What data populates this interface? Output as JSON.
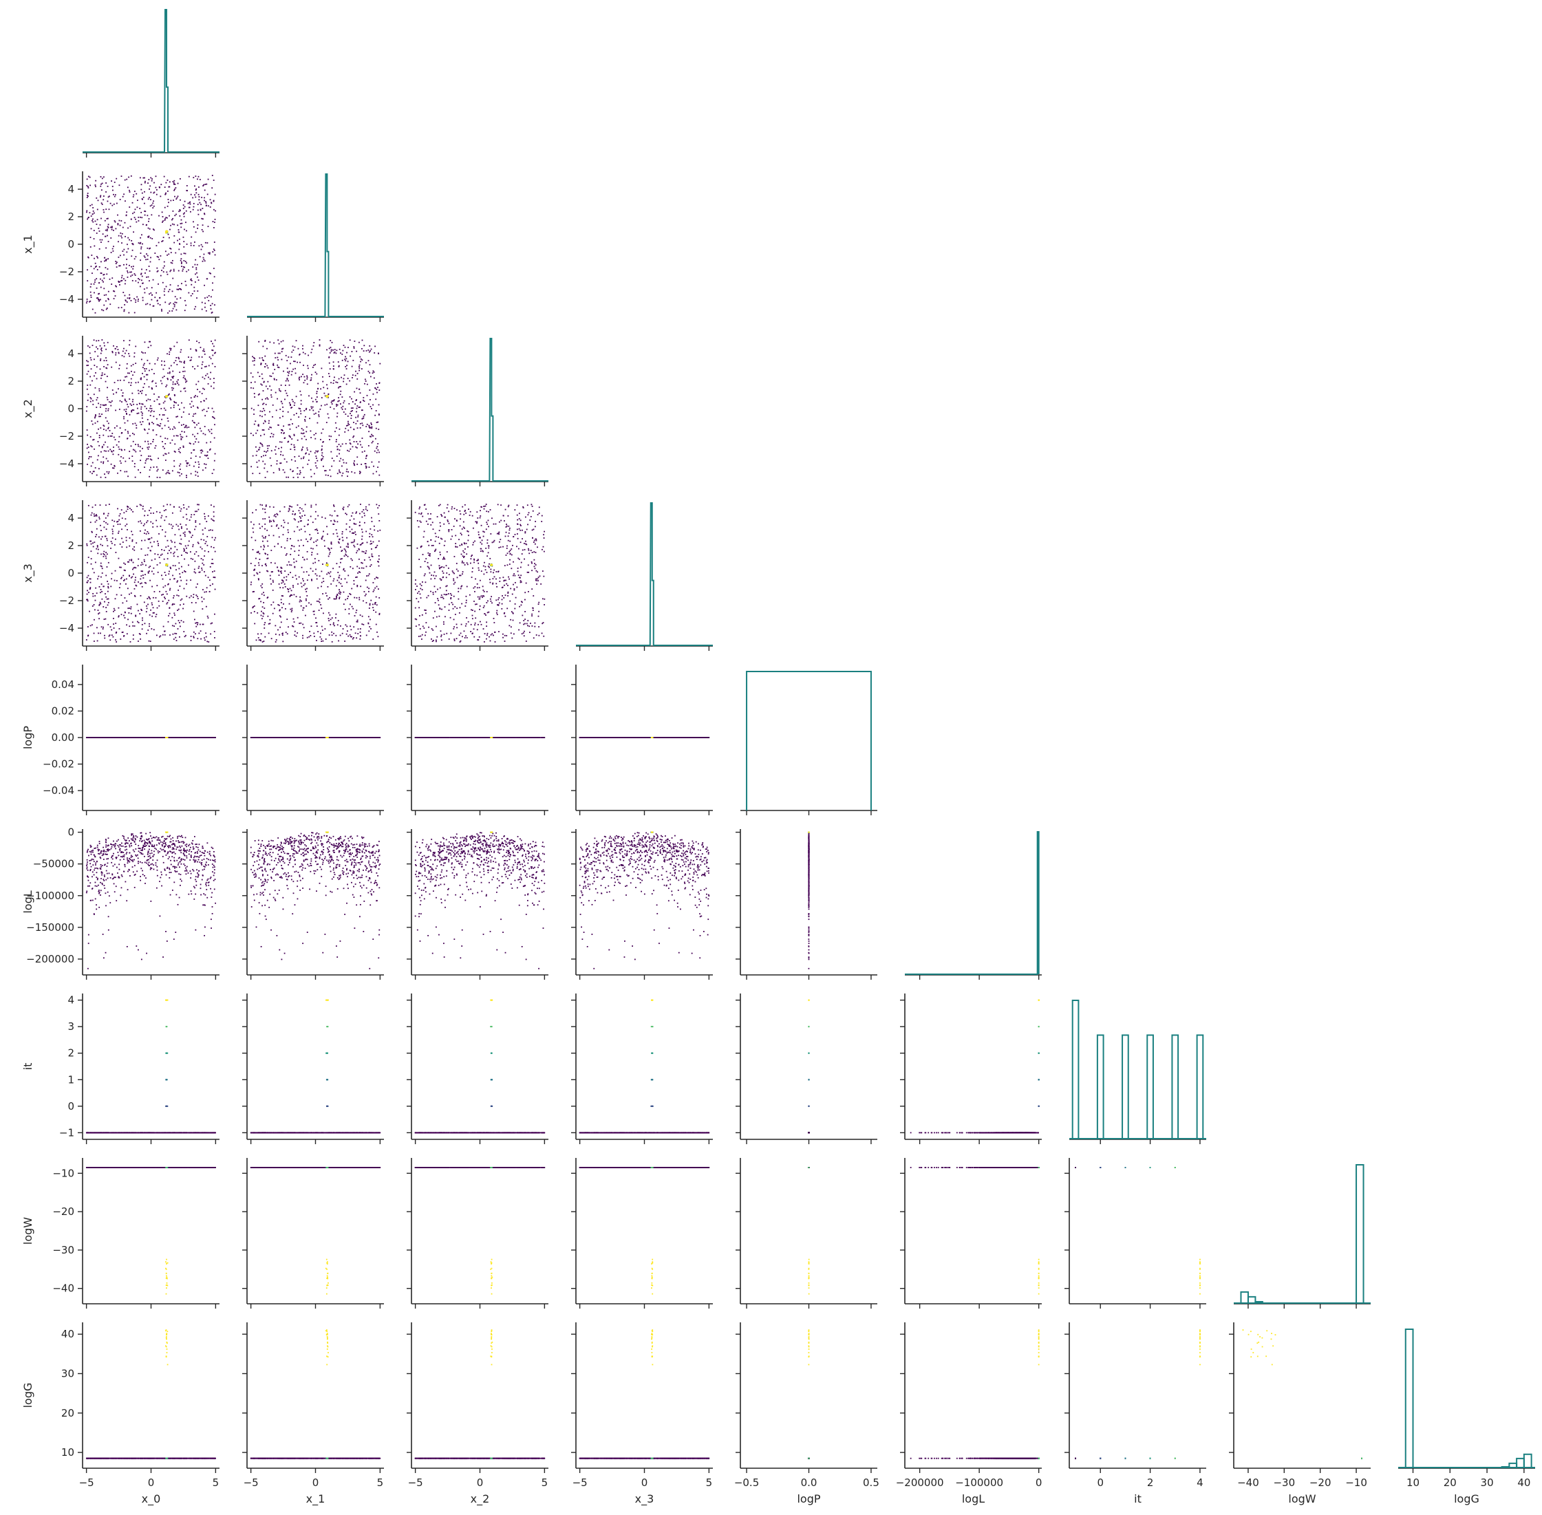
{
  "chart_data": {
    "type": "pairplot",
    "layout": "corner",
    "variables": [
      "x_0",
      "x_1",
      "x_2",
      "x_3",
      "logP",
      "logL",
      "it",
      "logW",
      "logG"
    ],
    "ranges": {
      "x_0": [
        -5.3,
        5.3
      ],
      "x_1": [
        -5.3,
        5.3
      ],
      "x_2": [
        -5.3,
        5.3
      ],
      "x_3": [
        -5.3,
        5.3
      ],
      "logP": [
        -0.55,
        0.55
      ],
      "logL": [
        -225000,
        5000
      ],
      "it": [
        -1.25,
        4.25
      ],
      "logW": [
        -44,
        -6
      ],
      "logG": [
        6,
        43
      ]
    },
    "ticks": {
      "x_0": [
        "-5",
        "0",
        "5"
      ],
      "x_1": [
        "-4",
        "-2",
        "0",
        "2",
        "4"
      ],
      "x_2": [
        "-4",
        "-2",
        "0",
        "2",
        "4"
      ],
      "x_3": [
        "-4",
        "-2",
        "0",
        "2",
        "4"
      ],
      "logP": [
        "-0.04",
        "-0.02",
        "0.00",
        "0.02",
        "0.04"
      ],
      "logL": [
        "-200000",
        "-150000",
        "-100000",
        "-50000",
        "0"
      ],
      "it": [
        "-1",
        "0",
        "1",
        "2",
        "3",
        "4"
      ],
      "logW": [
        "-40",
        "-30",
        "-20",
        "-10"
      ],
      "logG": [
        "10",
        "20",
        "30",
        "40"
      ]
    },
    "x_ticks": {
      "x_0": [
        "-5",
        "0",
        "5"
      ],
      "x_1": [
        "-5",
        "0",
        "5"
      ],
      "x_2": [
        "-5",
        "0",
        "5"
      ],
      "x_3": [
        "-5",
        "0",
        "5"
      ],
      "logP": [
        "-0.5",
        "0.0",
        "0.5"
      ],
      "logL": [
        "-200000",
        "-100000",
        "0"
      ],
      "it": [
        "0",
        "2",
        "4"
      ],
      "logW": [
        "-40",
        "-30",
        "-20",
        "-10"
      ],
      "logG": [
        "10",
        "20",
        "30",
        "40"
      ]
    },
    "y_ranges": {
      "logP": [
        -0.055,
        0.055
      ]
    },
    "diagonal": {
      "type": "step-histogram",
      "it_bins": [
        {
          "x": -1,
          "count": 4
        },
        {
          "x": 0,
          "count": 3
        },
        {
          "x": 1,
          "count": 3
        },
        {
          "x": 2,
          "count": 3
        },
        {
          "x": 3,
          "count": 3
        },
        {
          "x": 4,
          "count": 3
        }
      ],
      "logW_bins": [
        {
          "x0": -42,
          "x1": -40,
          "height": 0.085
        },
        {
          "x0": -40,
          "x1": -38,
          "height": 0.05
        },
        {
          "x0": -38,
          "x1": -36,
          "height": 0.015
        },
        {
          "x0": -36,
          "x1": -32,
          "height": 0.005
        },
        {
          "x0": -10,
          "x1": -8,
          "height": 1.0
        }
      ],
      "logG_bins": [
        {
          "x0": 8,
          "x1": 10,
          "height": 1.0
        },
        {
          "x0": 34,
          "x1": 36,
          "height": 0.01
        },
        {
          "x0": 36,
          "x1": 38,
          "height": 0.035
        },
        {
          "x0": 38,
          "x1": 40,
          "height": 0.07
        },
        {
          "x0": 40,
          "x1": 42,
          "height": 0.1
        }
      ],
      "peaks": {
        "x_0": 1.2,
        "x_1": 0.9,
        "x_2": 0.9,
        "x_3": 0.6
      }
    },
    "offdiag": {
      "type": "scatter",
      "colormap": "viridis",
      "color_by": "it",
      "n_points": 800,
      "distributions": {
        "x_0": "uniform(-5,5)",
        "x_1": "uniform(-5,5)",
        "x_2": "uniform(-5,5)",
        "x_3": "uniform(-5,5)",
        "logP": "constant 0",
        "logL": "-sum(x^2) scaled, max 0, min about -215000",
        "it": "-1 for most points, 0..4 for the posterior points",
        "logW": "about -8.5 for the main points, -42..-32 for the final points",
        "logG": "about 8.5 for the main points, 29..42 for the final points"
      }
    },
    "colors": {
      "hist": "#1a8080",
      "scatter_low": "#440154",
      "scatter_mid": "#21918c",
      "scatter_high": "#fde725",
      "axis": "#262626"
    },
    "grid": false,
    "legend": "none"
  }
}
